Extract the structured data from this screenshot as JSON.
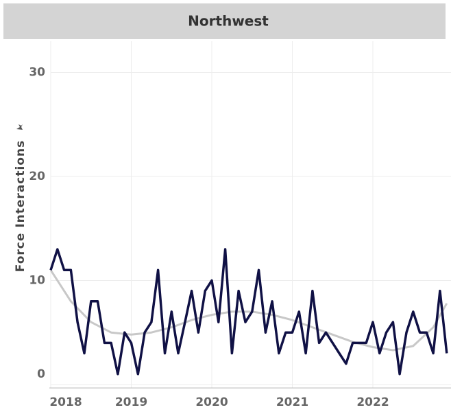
{
  "chart_data": {
    "type": "line",
    "title": "Northwest",
    "y_label": "Force Interactions",
    "xlim": [
      2018,
      2022.97
    ],
    "xticks": [
      2018,
      2019,
      2020,
      2021,
      2022
    ],
    "ylim": [
      0,
      33
    ],
    "yticks": [
      0,
      10,
      20,
      30
    ],
    "grid": true,
    "series": [
      {
        "name": "Force Interactions",
        "color": "#101145",
        "x": [
          2018,
          2018.083,
          2018.167,
          2018.25,
          2018.333,
          2018.417,
          2018.5,
          2018.583,
          2018.667,
          2018.75,
          2018.833,
          2018.917,
          2019,
          2019.083,
          2019.167,
          2019.25,
          2019.333,
          2019.417,
          2019.5,
          2019.583,
          2019.667,
          2019.75,
          2019.833,
          2019.917,
          2020,
          2020.083,
          2020.167,
          2020.25,
          2020.333,
          2020.417,
          2020.5,
          2020.583,
          2020.667,
          2020.75,
          2020.833,
          2020.917,
          2021,
          2021.083,
          2021.167,
          2021.25,
          2021.333,
          2021.417,
          2021.5,
          2021.583,
          2021.667,
          2021.75,
          2021.833,
          2021.917,
          2022,
          2022.083,
          2022.167,
          2022.25,
          2022.333,
          2022.417,
          2022.5,
          2022.583,
          2022.667,
          2022.75,
          2022.833,
          2022.917
        ],
        "values": [
          11,
          13,
          11,
          11,
          6,
          3,
          8,
          8,
          4,
          4,
          1,
          5,
          4,
          1,
          5,
          6,
          11,
          3,
          7,
          3,
          6,
          9,
          5,
          9,
          10,
          6,
          13,
          3,
          9,
          6,
          7,
          11,
          5,
          8,
          3,
          5,
          5,
          7,
          3,
          9,
          4,
          5,
          4,
          3,
          2,
          4,
          4,
          4,
          6,
          3,
          5,
          6,
          1,
          5,
          7,
          5,
          5,
          3,
          9,
          3
        ]
      },
      {
        "color": "#c8c8c8",
        "x": [
          2018,
          2018.25,
          2018.5,
          2018.75,
          2019,
          2019.25,
          2019.5,
          2019.75,
          2020,
          2020.25,
          2020.5,
          2020.75,
          2021,
          2021.25,
          2021.5,
          2021.75,
          2022,
          2022.25,
          2022.5,
          2022.75,
          2022.917
        ],
        "values": [
          11,
          8,
          6,
          5,
          4.8,
          5,
          5.5,
          6.2,
          6.7,
          7,
          7,
          6.7,
          6.2,
          5.5,
          4.8,
          4.1,
          3.6,
          3.3,
          3.7,
          5.5,
          7.8
        ]
      }
    ]
  }
}
